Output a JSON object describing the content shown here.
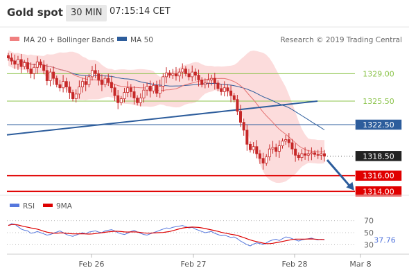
{
  "header": {
    "title": "Gold spot",
    "timeframe": "30 MIN",
    "time": "07:15:14 CET"
  },
  "legend": {
    "ma20_bb": "MA 20 + Bollinger Bands",
    "ma50": "MA 50",
    "attribution": "Research © 2019 Trading Central"
  },
  "colors": {
    "candle_up": "#c62828",
    "candle_down": "#c62828",
    "bb_fill": "#fbd3d3",
    "ma20": "#e57373",
    "ma50": "#2d5d9c",
    "resistance": "#8bc34a",
    "support": "#e00000",
    "trendline": "#2d5d9c",
    "rsi": "#5577dd",
    "rsi_ma": "#dd0000"
  },
  "chart_data": [
    {
      "type": "candlestick",
      "ylim": [
        1313.5,
        1331.5
      ],
      "x_ticks": [
        "Feb 26",
        "Feb 27",
        "Feb 28",
        "Mar 8"
      ],
      "levels": [
        {
          "label": "1329.00",
          "value": 1329.0,
          "role": "resistance"
        },
        {
          "label": "1325.50",
          "value": 1325.5,
          "role": "resistance"
        },
        {
          "label": "1322.50",
          "value": 1322.5,
          "role": "ma50"
        },
        {
          "label": "1318.50",
          "value": 1318.5,
          "role": "current"
        },
        {
          "label": "1316.00",
          "value": 1316.0,
          "role": "support"
        },
        {
          "label": "1314.00",
          "value": 1314.0,
          "role": "support"
        }
      ],
      "trend_start": 1321.2,
      "trend_end": 1325.5,
      "close_prices": [
        1331.0,
        1330.6,
        1330.2,
        1330.8,
        1329.9,
        1330.4,
        1329.6,
        1329.0,
        1329.8,
        1330.5,
        1330.1,
        1329.4,
        1328.1,
        1329.2,
        1328.4,
        1327.6,
        1327.2,
        1328.0,
        1327.3,
        1326.6,
        1325.8,
        1326.4,
        1327.3,
        1328.0,
        1327.6,
        1328.6,
        1329.4,
        1329.0,
        1328.2,
        1327.6,
        1328.4,
        1327.9,
        1327.2,
        1326.2,
        1325.3,
        1325.8,
        1326.6,
        1327.2,
        1326.7,
        1325.9,
        1325.3,
        1325.9,
        1326.9,
        1327.4,
        1326.8,
        1327.5,
        1326.5,
        1327.4,
        1328.6,
        1329.1,
        1328.8,
        1329.0,
        1328.7,
        1329.2,
        1329.6,
        1329.0,
        1328.6,
        1329.2,
        1328.8,
        1328.2,
        1327.6,
        1327.8,
        1328.2,
        1328.4,
        1327.8,
        1327.1,
        1326.7,
        1327.2,
        1326.8,
        1326.2,
        1325.7,
        1324.2,
        1322.8,
        1321.8,
        1320.0,
        1319.3,
        1319.7,
        1318.8,
        1318.2,
        1317.6,
        1318.4,
        1319.4,
        1319.6,
        1319.1,
        1319.8,
        1320.4,
        1320.6,
        1320.2,
        1319.4,
        1318.6,
        1318.3,
        1318.8,
        1318.6,
        1318.8,
        1318.9,
        1318.7,
        1318.6,
        1318.8,
        1318.5
      ],
      "ma20_series": "computed from close_prices",
      "rsi_panel": {
        "legend": [
          "RSI",
          "9MA"
        ],
        "ylim": [
          20,
          80
        ],
        "y_ticks": [
          "70",
          "50",
          "30"
        ],
        "current_value": "37.76",
        "values": [
          62,
          65,
          64,
          60,
          56,
          54,
          53,
          49,
          50,
          52,
          50,
          48,
          46,
          47,
          49,
          51,
          53,
          50,
          47,
          45,
          44,
          46,
          48,
          50,
          48,
          51,
          52,
          53,
          51,
          50,
          53,
          54,
          55,
          53,
          50,
          48,
          47,
          49,
          52,
          54,
          51,
          49,
          47,
          46,
          48,
          50,
          52,
          54,
          56,
          58,
          57,
          59,
          60,
          61,
          62,
          60,
          58,
          59,
          56,
          54,
          52,
          50,
          51,
          52,
          49,
          47,
          45,
          46,
          44,
          42,
          43,
          40,
          36,
          33,
          30,
          28,
          31,
          33,
          32,
          30,
          33,
          36,
          38,
          39,
          37,
          40,
          43,
          42,
          40,
          38,
          36,
          38,
          39,
          40,
          41,
          39,
          38,
          39,
          38
        ]
      }
    }
  ]
}
